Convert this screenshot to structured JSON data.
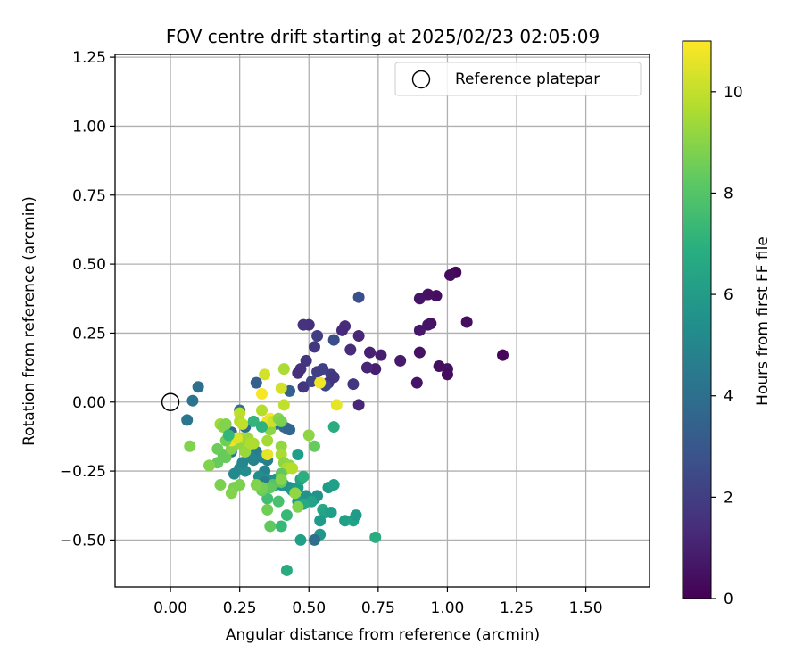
{
  "chart_data": {
    "type": "scatter",
    "title": "FOV centre drift starting at 2025/02/23 02:05:09",
    "xlabel": "Angular distance from reference (arcmin)",
    "ylabel": "Rotation from reference (arcmin)",
    "xlim": [
      -0.2,
      1.73
    ],
    "ylim": [
      -0.67,
      1.26
    ],
    "xticks": [
      0.0,
      0.25,
      0.5,
      0.75,
      1.0,
      1.25,
      1.5
    ],
    "xtick_labels": [
      "0.00",
      "0.25",
      "0.50",
      "0.75",
      "1.00",
      "1.25",
      "1.50"
    ],
    "yticks": [
      -0.5,
      -0.25,
      0.0,
      0.25,
      0.5,
      0.75,
      1.0,
      1.25
    ],
    "ytick_labels": [
      "−0.50",
      "−0.25",
      "0.00",
      "0.25",
      "0.50",
      "0.75",
      "1.00",
      "1.25"
    ],
    "grid": true,
    "legend": {
      "position": "upper right",
      "entries": [
        "Reference platepar"
      ]
    },
    "colorbar": {
      "label": "Hours from first FF file",
      "colormap": "viridis",
      "range": [
        0,
        11
      ],
      "ticks": [
        0,
        2,
        4,
        6,
        8,
        10
      ],
      "tick_labels": [
        "0",
        "2",
        "4",
        "6",
        "8",
        "10"
      ]
    },
    "reference_point": {
      "x": 0.0,
      "y": 0.0,
      "label": "Reference platepar"
    },
    "points": [
      [
        1.03,
        0.47,
        0.2
      ],
      [
        1.01,
        0.46,
        0.3
      ],
      [
        0.96,
        0.385,
        0.4
      ],
      [
        0.93,
        0.39,
        0.5
      ],
      [
        0.9,
        0.375,
        0.6
      ],
      [
        1.07,
        0.29,
        0.4
      ],
      [
        0.94,
        0.285,
        0.5
      ],
      [
        0.93,
        0.28,
        0.6
      ],
      [
        0.9,
        0.26,
        0.7
      ],
      [
        1.2,
        0.17,
        0.2
      ],
      [
        0.9,
        0.18,
        0.5
      ],
      [
        0.83,
        0.15,
        0.8
      ],
      [
        0.97,
        0.13,
        0.4
      ],
      [
        1.0,
        0.12,
        0.5
      ],
      [
        1.0,
        0.1,
        0.3
      ],
      [
        0.89,
        0.07,
        0.6
      ],
      [
        0.76,
        0.17,
        0.9
      ],
      [
        0.72,
        0.18,
        1.0
      ],
      [
        0.74,
        0.12,
        0.9
      ],
      [
        0.71,
        0.125,
        1.1
      ],
      [
        0.68,
        0.24,
        1.2
      ],
      [
        0.63,
        0.275,
        1.4
      ],
      [
        0.62,
        0.26,
        1.3
      ],
      [
        0.65,
        0.19,
        1.4
      ],
      [
        0.5,
        0.28,
        1.5
      ],
      [
        0.48,
        0.28,
        1.6
      ],
      [
        0.53,
        0.24,
        2.0
      ],
      [
        0.52,
        0.2,
        1.8
      ],
      [
        0.49,
        0.15,
        1.7
      ],
      [
        0.47,
        0.12,
        1.6
      ],
      [
        0.46,
        0.105,
        1.5
      ],
      [
        0.55,
        0.12,
        2.1
      ],
      [
        0.53,
        0.11,
        2.0
      ],
      [
        0.58,
        0.1,
        1.9
      ],
      [
        0.59,
        0.09,
        1.8
      ],
      [
        0.57,
        0.07,
        1.6
      ],
      [
        0.48,
        0.055,
        1.7
      ],
      [
        0.66,
        0.065,
        1.7
      ],
      [
        0.68,
        -0.01,
        1.2
      ],
      [
        0.59,
        0.225,
        2.6
      ],
      [
        0.68,
        0.38,
        2.7
      ],
      [
        0.56,
        0.06,
        2.3
      ],
      [
        0.51,
        0.075,
        2.2
      ],
      [
        0.43,
        0.04,
        3.4
      ],
      [
        0.31,
        0.07,
        3.3
      ],
      [
        0.1,
        0.055,
        4.0
      ],
      [
        0.08,
        0.005,
        4.2
      ],
      [
        0.06,
        -0.065,
        4.3
      ],
      [
        0.25,
        -0.03,
        4.2
      ],
      [
        0.38,
        -0.08,
        4.1
      ],
      [
        0.41,
        -0.09,
        4.0
      ],
      [
        0.42,
        -0.095,
        3.8
      ],
      [
        0.43,
        -0.1,
        3.6
      ],
      [
        0.22,
        -0.11,
        3.7
      ],
      [
        0.27,
        -0.09,
        3.9
      ],
      [
        0.24,
        -0.15,
        4.5
      ],
      [
        0.22,
        -0.18,
        4.4
      ],
      [
        0.31,
        -0.18,
        4.6
      ],
      [
        0.3,
        -0.21,
        4.8
      ],
      [
        0.35,
        -0.21,
        4.6
      ],
      [
        0.33,
        -0.2,
        4.9
      ],
      [
        0.29,
        -0.2,
        5.0
      ],
      [
        0.25,
        -0.24,
        5.2
      ],
      [
        0.23,
        -0.26,
        5.2
      ],
      [
        0.27,
        -0.25,
        5.4
      ],
      [
        0.26,
        -0.22,
        5.1
      ],
      [
        0.34,
        -0.25,
        5.0
      ],
      [
        0.32,
        -0.27,
        5.4
      ],
      [
        0.35,
        -0.28,
        5.5
      ],
      [
        0.34,
        -0.29,
        4.7
      ],
      [
        0.38,
        -0.28,
        5.6
      ],
      [
        0.38,
        -0.3,
        5.8
      ],
      [
        0.4,
        -0.3,
        5.2
      ],
      [
        0.41,
        -0.3,
        5.9
      ],
      [
        0.43,
        -0.31,
        5.5
      ],
      [
        0.44,
        -0.32,
        5.8
      ],
      [
        0.46,
        -0.31,
        6.0
      ],
      [
        0.49,
        -0.34,
        5.6
      ],
      [
        0.52,
        -0.35,
        5.5
      ],
      [
        0.53,
        -0.34,
        5.6
      ],
      [
        0.46,
        -0.36,
        6.0
      ],
      [
        0.47,
        -0.28,
        6.3
      ],
      [
        0.46,
        -0.19,
        6.1
      ],
      [
        0.51,
        -0.36,
        6.3
      ],
      [
        0.48,
        -0.37,
        6.6
      ],
      [
        0.55,
        -0.39,
        6.6
      ],
      [
        0.56,
        -0.4,
        6.4
      ],
      [
        0.58,
        -0.4,
        6.1
      ],
      [
        0.57,
        -0.31,
        6.0
      ],
      [
        0.59,
        -0.3,
        6.2
      ],
      [
        0.54,
        -0.43,
        6.0
      ],
      [
        0.63,
        -0.43,
        6.2
      ],
      [
        0.66,
        -0.43,
        6.3
      ],
      [
        0.67,
        -0.41,
        6.0
      ],
      [
        0.54,
        -0.48,
        5.8
      ],
      [
        0.52,
        -0.5,
        4.0
      ],
      [
        0.47,
        -0.5,
        6.2
      ],
      [
        0.74,
        -0.49,
        6.8
      ],
      [
        0.42,
        -0.61,
        6.7
      ],
      [
        0.59,
        -0.09,
        6.8
      ],
      [
        0.42,
        -0.41,
        7.4
      ],
      [
        0.4,
        -0.45,
        7.4
      ],
      [
        0.36,
        -0.45,
        8.3
      ],
      [
        0.39,
        -0.36,
        7.8
      ],
      [
        0.35,
        -0.35,
        7.6
      ],
      [
        0.37,
        -0.3,
        8.0
      ],
      [
        0.4,
        -0.29,
        8.3
      ],
      [
        0.36,
        -0.31,
        8.3
      ],
      [
        0.33,
        -0.32,
        8.5
      ],
      [
        0.33,
        -0.31,
        8.7
      ],
      [
        0.31,
        -0.3,
        8.9
      ],
      [
        0.25,
        -0.3,
        8.8
      ],
      [
        0.23,
        -0.31,
        8.8
      ],
      [
        0.22,
        -0.33,
        8.9
      ],
      [
        0.18,
        -0.3,
        8.8
      ],
      [
        0.17,
        -0.22,
        8.4
      ],
      [
        0.19,
        -0.19,
        8.3
      ],
      [
        0.2,
        -0.2,
        8.4
      ],
      [
        0.17,
        -0.17,
        8.5
      ],
      [
        0.14,
        -0.23,
        8.9
      ],
      [
        0.07,
        -0.16,
        8.9
      ],
      [
        0.22,
        -0.17,
        9.0
      ],
      [
        0.25,
        -0.15,
        9.2
      ],
      [
        0.27,
        -0.18,
        9.3
      ],
      [
        0.26,
        -0.13,
        9.5
      ],
      [
        0.28,
        -0.13,
        9.4
      ],
      [
        0.3,
        -0.15,
        9.6
      ],
      [
        0.35,
        -0.14,
        9.5
      ],
      [
        0.36,
        -0.1,
        9.1
      ],
      [
        0.4,
        -0.16,
        9.2
      ],
      [
        0.4,
        -0.19,
        9.6
      ],
      [
        0.41,
        -0.22,
        9.1
      ],
      [
        0.43,
        -0.23,
        9.2
      ],
      [
        0.42,
        -0.24,
        9.6
      ],
      [
        0.44,
        -0.24,
        9.8
      ],
      [
        0.4,
        -0.26,
        8.3
      ],
      [
        0.4,
        -0.28,
        9.0
      ],
      [
        0.45,
        -0.33,
        9.2
      ],
      [
        0.46,
        -0.38,
        8.9
      ],
      [
        0.35,
        -0.39,
        8.6
      ],
      [
        0.33,
        -0.03,
        9.8
      ],
      [
        0.41,
        -0.01,
        10.0
      ],
      [
        0.4,
        0.05,
        10.3
      ],
      [
        0.33,
        0.03,
        10.9
      ],
      [
        0.34,
        0.1,
        10.3
      ],
      [
        0.41,
        0.12,
        9.6
      ],
      [
        0.36,
        -0.06,
        10.9
      ],
      [
        0.35,
        -0.07,
        10.7
      ],
      [
        0.37,
        -0.07,
        10.2
      ],
      [
        0.25,
        -0.04,
        9.9
      ],
      [
        0.25,
        -0.07,
        9.8
      ],
      [
        0.26,
        -0.08,
        10.0
      ],
      [
        0.22,
        -0.14,
        10.7
      ],
      [
        0.24,
        -0.13,
        10.4
      ],
      [
        0.29,
        -0.15,
        9.7
      ],
      [
        0.39,
        -0.06,
        9.0
      ],
      [
        0.4,
        -0.07,
        8.8
      ],
      [
        0.5,
        -0.12,
        9.1
      ],
      [
        0.52,
        -0.16,
        8.4
      ],
      [
        0.35,
        -0.19,
        10.6
      ],
      [
        0.54,
        0.07,
        10.8
      ],
      [
        0.6,
        -0.01,
        10.6
      ],
      [
        0.18,
        -0.08,
        9.4
      ],
      [
        0.19,
        -0.09,
        9.0
      ],
      [
        0.2,
        -0.08,
        8.9
      ],
      [
        0.2,
        -0.14,
        8.6
      ],
      [
        0.21,
        -0.12,
        7.3
      ],
      [
        0.3,
        -0.07,
        7.2
      ],
      [
        0.33,
        -0.09,
        7.0
      ],
      [
        0.48,
        -0.27,
        6.9
      ]
    ]
  }
}
